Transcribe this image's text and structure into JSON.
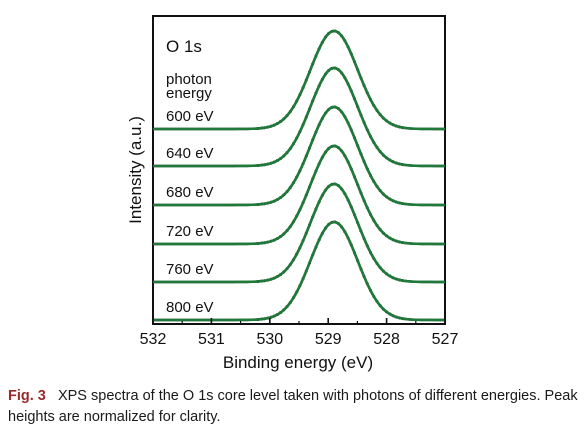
{
  "chart_data": {
    "type": "line",
    "xlabel": "Binding energy (eV)",
    "ylabel": "Intensity (a.u.)",
    "xlim": [
      532,
      527
    ],
    "x_reversed": true,
    "x_ticks": [
      "532",
      "531",
      "530",
      "529",
      "528",
      "527"
    ],
    "panel_label": "O 1s",
    "legend_header": [
      "photon",
      "energy"
    ],
    "peak_center_ev": 528.9,
    "peak_fwhm_ev": 0.95,
    "grid": false,
    "series_colors": {
      "fit": "#1f7a3a",
      "data": "#111111"
    },
    "series": [
      {
        "name": "600 eV",
        "x": [
          532.0,
          531.0,
          530.0,
          529.5,
          529.0,
          528.9,
          528.5,
          528.0,
          527.0
        ],
        "values": [
          0.0,
          0.0,
          0.05,
          0.37,
          0.98,
          1.0,
          0.57,
          0.07,
          0.0
        ]
      },
      {
        "name": "640 eV",
        "x": [
          532.0,
          531.0,
          530.0,
          529.5,
          529.0,
          528.9,
          528.5,
          528.0,
          527.0
        ],
        "values": [
          0.0,
          0.0,
          0.05,
          0.37,
          0.98,
          1.0,
          0.57,
          0.07,
          0.0
        ]
      },
      {
        "name": "680 eV",
        "x": [
          532.0,
          531.0,
          530.0,
          529.5,
          529.0,
          528.9,
          528.5,
          528.0,
          527.0
        ],
        "values": [
          0.0,
          0.0,
          0.05,
          0.37,
          0.98,
          1.0,
          0.57,
          0.07,
          0.0
        ]
      },
      {
        "name": "720 eV",
        "x": [
          532.0,
          531.0,
          530.0,
          529.5,
          529.0,
          528.9,
          528.5,
          528.0,
          527.0
        ],
        "values": [
          0.0,
          0.0,
          0.05,
          0.37,
          0.98,
          1.0,
          0.57,
          0.07,
          0.0
        ]
      },
      {
        "name": "760 eV",
        "x": [
          532.0,
          531.0,
          530.0,
          529.5,
          529.0,
          528.9,
          528.5,
          528.0,
          527.0
        ],
        "values": [
          0.0,
          0.0,
          0.05,
          0.37,
          0.98,
          1.0,
          0.57,
          0.07,
          0.0
        ]
      },
      {
        "name": "800 eV",
        "x": [
          532.0,
          531.0,
          530.0,
          529.5,
          529.0,
          528.9,
          528.5,
          528.0,
          527.0
        ],
        "values": [
          0.0,
          0.0,
          0.05,
          0.37,
          0.98,
          1.0,
          0.57,
          0.07,
          0.0
        ]
      }
    ]
  },
  "caption": {
    "label": "Fig. 3",
    "text": "XPS spectra of the O 1s core level taken with photons of different energies. Peak heights are normalized for clarity."
  }
}
